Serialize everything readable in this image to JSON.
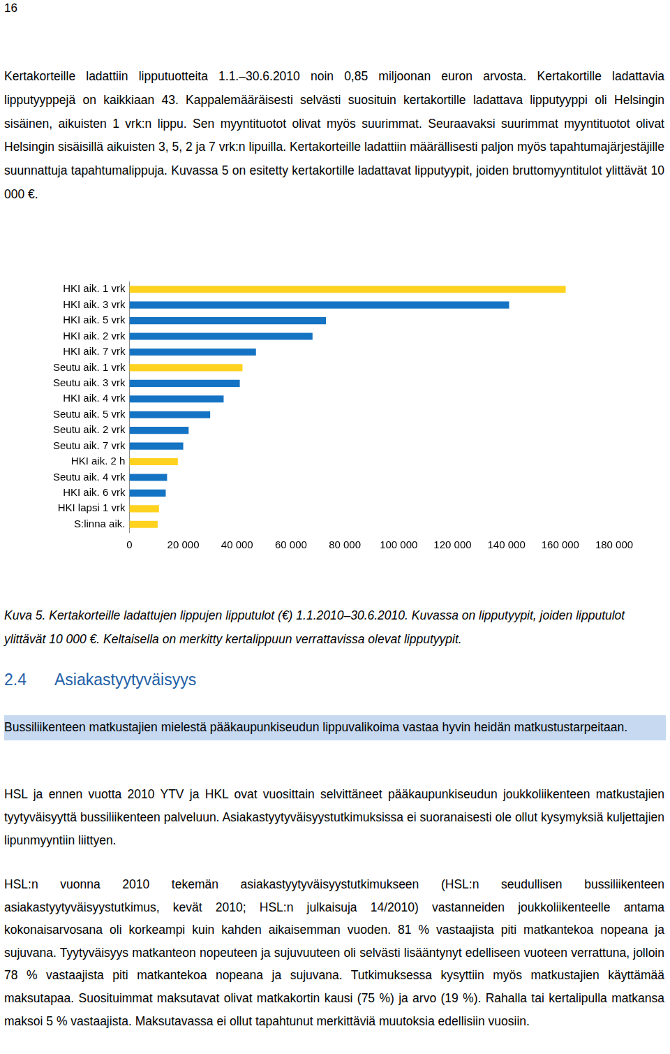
{
  "page_number": "16",
  "intro_paragraph": "Kertakorteille ladattiin lipputuotteita 1.1.–30.6.2010 noin 0,85 miljoonan euron arvosta. Kertakortille ladattavia lipputyyppejä on kaikkiaan 43. Kappalemääräisesti selvästi suosituin kertakortille ladattava lipputyyppi oli Helsingin sisäinen, aikuisten 1 vrk:n lippu. Sen myyntituotot olivat myös suurimmat. Seuraavaksi suurimmat myyntituotot olivat Helsingin sisäisillä aikuisten 3, 5, 2 ja 7 vrk:n lipuilla. Kertakorteille ladattiin määrällisesti paljon myös tapahtumajärjestäjille suunnattuja tapahtumalippuja. Kuvassa 5 on esitetty kertakortille ladattavat lipputyypit, joiden bruttomyyntitulot ylittävät 10 000 €.",
  "chart_data": {
    "type": "bar",
    "orientation": "horizontal",
    "categories": [
      "HKI aik. 1 vrk",
      "HKI aik. 3 vrk",
      "HKI aik. 5 vrk",
      "HKI aik. 2 vrk",
      "HKI aik. 7 vrk",
      "Seutu aik. 1 vrk",
      "Seutu aik. 3 vrk",
      "HKI aik. 4 vrk",
      "Seutu aik. 5 vrk",
      "Seutu aik. 2 vrk",
      "Seutu aik. 7 vrk",
      "HKI aik. 2 h",
      "Seutu aik. 4 vrk",
      "HKI aik. 6 vrk",
      "HKI lapsi 1 vrk",
      "S:linna aik."
    ],
    "values": [
      162000,
      141000,
      73000,
      68000,
      47000,
      42000,
      41000,
      35000,
      30000,
      22000,
      20000,
      18000,
      14000,
      13500,
      11000,
      10500
    ],
    "colors": [
      "#ffd21f",
      "#1473c3",
      "#1473c3",
      "#1473c3",
      "#1473c3",
      "#ffd21f",
      "#1473c3",
      "#1473c3",
      "#1473c3",
      "#1473c3",
      "#1473c3",
      "#ffd21f",
      "#1473c3",
      "#1473c3",
      "#ffd21f",
      "#ffd21f"
    ],
    "xlim": [
      0,
      180000
    ],
    "xticks": [
      0,
      {
        "value": 20000,
        "label": "20 000"
      },
      {
        "value": 40000,
        "label": "40 000"
      },
      {
        "value": 60000,
        "label": "60 000"
      },
      {
        "value": 80000,
        "label": "80 000"
      },
      {
        "value": 100000,
        "label": "100 000"
      },
      {
        "value": 120000,
        "label": "120 000"
      },
      {
        "value": 140000,
        "label": "140 000"
      },
      {
        "value": 160000,
        "label": "160 000"
      },
      {
        "value": 180000,
        "label": "180 000"
      }
    ],
    "grid": false
  },
  "caption": "Kuva 5. Kertakorteille ladattujen lippujen lipputulot (€) 1.1.2010–30.6.2010. Kuvassa on lipputyypit, joiden lipputulot ylittävät 10 000 €. Keltaisella on merkitty kertalippuun verrattavissa olevat lipputyypit.",
  "section": {
    "number": "2.4",
    "title": "Asiakastyytyväisyys"
  },
  "highlight": "Bussiliikenteen matkustajien mielestä pääkaupunkiseudun lippuvalikoima vastaa hyvin heidän matkustustarpeitaan.",
  "paragraphs": [
    "HSL ja ennen vuotta 2010 YTV ja HKL ovat vuosittain selvittäneet pääkaupunkiseudun joukkoliikenteen matkustajien tyytyväisyyttä bussiliikenteen palveluun. Asiakastyytyväisyystutkimuksissa ei suoranaisesti ole ollut kysymyksiä kuljettajien lipunmyyntiin liittyen.",
    "HSL:n vuonna 2010 tekemän asiakastyytyväisyystutkimukseen (HSL:n seudullisen bussiliikenteen asiakastyytyväisyystutkimus, kevät 2010; HSL:n julkaisuja 14/2010) vastanneiden joukkoliikenteelle antama kokonaisarvosana oli korkeampi kuin kahden aikaisemman vuoden. 81 % vastaajista piti matkantekoa nopeana ja sujuvana. Tyytyväisyys matkanteon nopeuteen ja sujuvuuteen oli selvästi lisääntynyt edelliseen vuoteen verrattuna, jolloin 78 % vastaajista piti matkantekoa nopeana ja sujuvana. Tutkimuksessa kysyttiin myös matkustajien käyttämää maksutapaa. Suosituimmat maksutavat olivat matkakortin kausi (75 %) ja arvo (19 %). Rahalla tai kertalipulla matkansa maksoi 5 % vastaajista. Maksutavassa ei ollut tapahtunut merkittäviä muutoksia edellisiin vuosiin."
  ]
}
